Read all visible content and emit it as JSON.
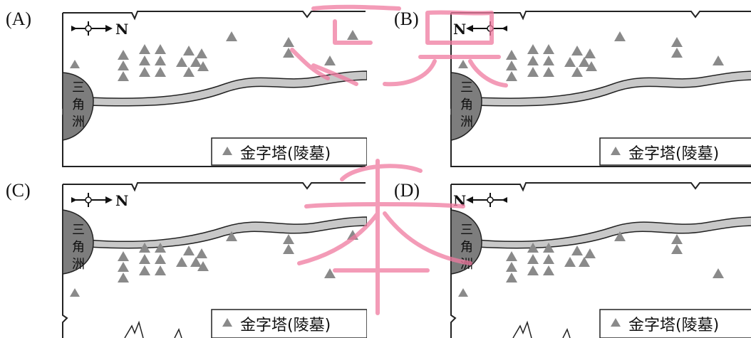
{
  "panels": [
    {
      "id": "A",
      "label": "(A)",
      "arrow": "east",
      "delta": "top"
    },
    {
      "id": "B",
      "label": "(B)",
      "arrow": "west",
      "delta": "top"
    },
    {
      "id": "C",
      "label": "(C)",
      "arrow": "east",
      "delta": "bottom"
    },
    {
      "id": "D",
      "label": "(D)",
      "arrow": "west",
      "delta": "bottom"
    }
  ],
  "north_label": "N",
  "delta_text": [
    "三",
    "角",
    "洲"
  ],
  "legend_text": "金字塔(陵墓)",
  "legend_symbol": "triangle",
  "colors": {
    "river": "#c8c8c8",
    "delta": "#7d7d7d",
    "pyramid": "#8a8a8a",
    "frame": "#222222",
    "watermark": "#f07aa0"
  }
}
